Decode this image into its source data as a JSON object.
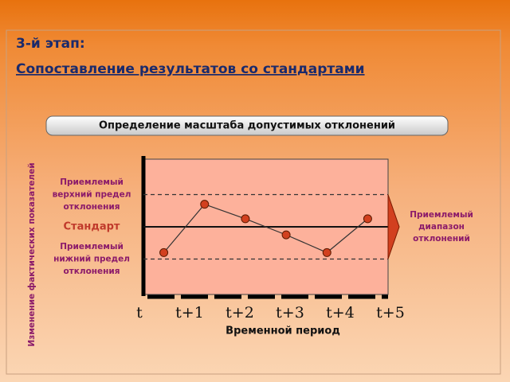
{
  "header": {
    "stage": "3-й этап:",
    "title": "Сопоставление результатов со стандартами"
  },
  "chart_data": {
    "type": "line",
    "title": "Определение масштаба допустимых отклонений",
    "x_label": "Временной период",
    "y_label": "Изменение фактических показателей",
    "categories": [
      "t",
      "t+1",
      "t+2",
      "t+3",
      "t+4",
      "t+5"
    ],
    "series": [
      {
        "color": "#d2401f",
        "values": [
          -0.8,
          0.7,
          0.25,
          -0.25,
          -0.8,
          0.25
        ]
      }
    ],
    "ylim": [
      -2.1,
      2.1
    ],
    "reference_lines": [
      {
        "value": 1,
        "style": "dashed",
        "label": [
          "Приемлемый",
          "верхний предел",
          "отклонения"
        ]
      },
      {
        "value": 0,
        "style": "solid",
        "label": [
          "Стандарт"
        ]
      },
      {
        "value": -1,
        "style": "dashed",
        "label": [
          "Приемлемый",
          "нижний предел",
          "отклонения"
        ]
      }
    ],
    "range_label": [
      "Приемлемый",
      "диапазон",
      "отклонений"
    ]
  }
}
